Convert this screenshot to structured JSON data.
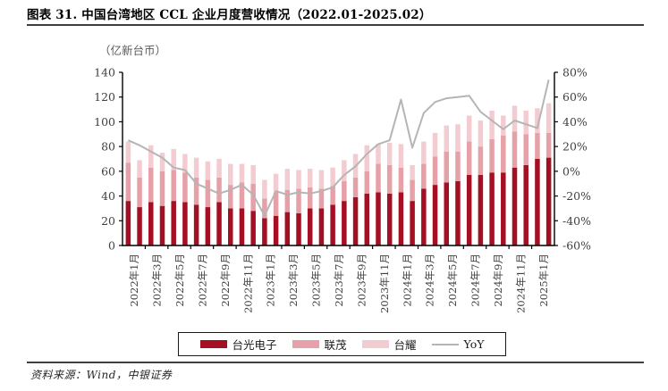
{
  "header": {
    "title": "图表 31. 中国台湾地区 CCL 企业月度营收情况（2022.01-2025.02）"
  },
  "footer": {
    "source": "资料来源：Wind，中银证券"
  },
  "chart_data": {
    "type": "bar",
    "subtype": "stacked-bar-with-line",
    "title": "中国台湾地区 CCL 企业月度营收情况（2022.01-2025.02）",
    "unit_label": "（亿新台币）",
    "grid": false,
    "legend_position": "bottom",
    "categories": [
      "2022年1月",
      "2022年2月",
      "2022年3月",
      "2022年4月",
      "2022年5月",
      "2022年6月",
      "2022年7月",
      "2022年8月",
      "2022年9月",
      "2022年10月",
      "2022年11月",
      "2022年12月",
      "2023年1月",
      "2023年2月",
      "2023年3月",
      "2023年4月",
      "2023年5月",
      "2023年6月",
      "2023年7月",
      "2023年8月",
      "2023年9月",
      "2023年10月",
      "2023年11月",
      "2023年12月",
      "2024年1月",
      "2024年2月",
      "2024年3月",
      "2024年4月",
      "2024年5月",
      "2024年6月",
      "2024年7月",
      "2024年8月",
      "2024年9月",
      "2024年10月",
      "2024年11月",
      "2024年12月",
      "2025年1月",
      "2025年2月"
    ],
    "x_tick_labels": [
      "2022年1月",
      "2022年3月",
      "2022年5月",
      "2022年7月",
      "2022年9月",
      "2022年11月",
      "2023年1月",
      "2023年3月",
      "2023年5月",
      "2023年7月",
      "2023年9月",
      "2023年11月",
      "2024年1月",
      "2024年3月",
      "2024年5月",
      "2024年7月",
      "2024年9月",
      "2024年11月",
      "2025年1月"
    ],
    "series": [
      {
        "name": "台光电子",
        "color": "#a50f23",
        "values": [
          36,
          31,
          35,
          32,
          36,
          35,
          33,
          31,
          35,
          30,
          30,
          28,
          22,
          24,
          27,
          26,
          30,
          30,
          33,
          36,
          39,
          42,
          43,
          42,
          43,
          36,
          46,
          49,
          51,
          52,
          57,
          57,
          59,
          59,
          63,
          65,
          70,
          71
        ]
      },
      {
        "name": "联茂",
        "color": "#e5a0a8",
        "values": [
          31,
          24,
          28,
          28,
          25,
          24,
          22,
          22,
          20,
          19,
          21,
          22,
          16,
          19,
          18,
          20,
          17,
          16,
          15,
          16,
          16,
          18,
          23,
          23,
          20,
          17,
          20,
          23,
          25,
          24,
          27,
          23,
          27,
          30,
          29,
          25,
          21,
          20
        ]
      },
      {
        "name": "台耀",
        "color": "#f3ccd2",
        "values": [
          17,
          14,
          18,
          15,
          17,
          15,
          16,
          15,
          15,
          17,
          15,
          15,
          15,
          15,
          17,
          15,
          15,
          15,
          15,
          17,
          19,
          21,
          16,
          18,
          19,
          12,
          18,
          19,
          21,
          22,
          21,
          21,
          23,
          16,
          21,
          19,
          20,
          24
        ]
      }
    ],
    "line": {
      "name": "YoY",
      "color": "#b5b5b5",
      "axis": "right",
      "values_pct": [
        25,
        21,
        16,
        11,
        3,
        1,
        -10,
        -14,
        -18,
        -15,
        -11,
        -19,
        -36,
        -16,
        -19,
        -17,
        -18,
        -16,
        -13,
        -3,
        4,
        14,
        22,
        25,
        58,
        19,
        47,
        56,
        59,
        60,
        61,
        48,
        41,
        34,
        41,
        38,
        35,
        74
      ]
    },
    "left_axis": {
      "min": 0,
      "max": 140,
      "step": 20,
      "ticks": [
        0,
        20,
        40,
        60,
        80,
        100,
        120,
        140
      ],
      "tick_labels": [
        "0",
        "20",
        "40",
        "60",
        "80",
        "100",
        "120",
        "140"
      ]
    },
    "right_axis": {
      "min": -60,
      "max": 80,
      "step": 20,
      "ticks": [
        -60,
        -40,
        -20,
        0,
        20,
        40,
        60,
        80
      ],
      "tick_labels": [
        "-60%",
        "-40%",
        "-20%",
        "0%",
        "20%",
        "40%",
        "60%",
        "80%"
      ]
    }
  }
}
